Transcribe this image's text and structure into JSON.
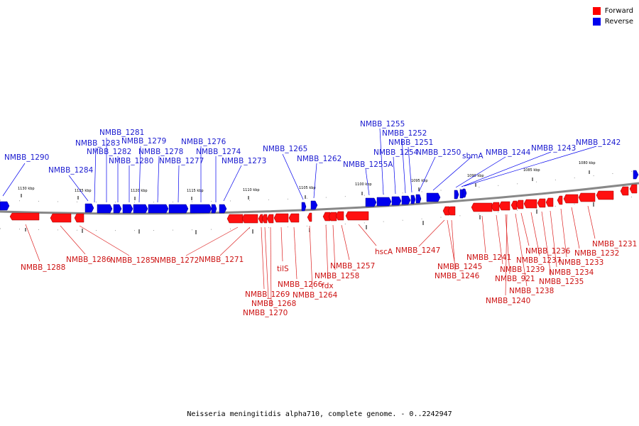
{
  "legend": {
    "forward_label": "Forward",
    "reverse_label": "Reverse",
    "forward_color": "#ff0000",
    "reverse_color": "#0000ee"
  },
  "caption": "Neisseria meningitidis alpha710, complete genome. - 0..2242947",
  "scale": {
    "unit": "kbp",
    "ticks": [
      "1130 kbp",
      "1125 kbp",
      "1120 kbp",
      "1115 kbp",
      "1110 kbp",
      "1105 kbp",
      "1100 kbp",
      "1095 kbp",
      "1090 kbp",
      "1085 kbp",
      "1080 kbp"
    ]
  },
  "genes": {
    "reverse": [
      "NMBB_1290",
      "NMBB_1284",
      "NMBB_1283",
      "NMBB_1281",
      "NMBB_1282",
      "NMBB_1280",
      "NMBB_1279",
      "NMBB_1278",
      "NMBB_1277",
      "NMBB_1276",
      "NMBB_1274",
      "NMBB_1273",
      "NMBB_1265",
      "NMBB_1262",
      "NMBB_1255A",
      "NMBB_1255",
      "NMBB_1254",
      "NMBB_1252",
      "NMBB_1251",
      "NMBB_1250",
      "sbmA",
      "NMBB_1244",
      "NMBB_1243",
      "NMBB_1242"
    ],
    "forward": [
      "NMBB_1288",
      "NMBB_1286",
      "NMBB_1285",
      "NMBB_1272",
      "NMBB_1271",
      "tilS",
      "NMBB_1266",
      "NMBB_1269",
      "NMBB_1264",
      "NMBB_1268",
      "NMBB_1270",
      "fdx",
      "NMBB_1258",
      "NMBB_1257",
      "hscA",
      "NMBB_1247",
      "NMBB_1245",
      "NMBB_1246",
      "NMBB_1241",
      "NMBB_1239",
      "NMBB_921",
      "NMBB_1240",
      "NMBB_1238",
      "NMBB_1236",
      "NMBB_1237",
      "NMBB_1235",
      "NMBB_1234",
      "NMBB_1233",
      "NMBB_1232",
      "NMBB_1231"
    ]
  }
}
